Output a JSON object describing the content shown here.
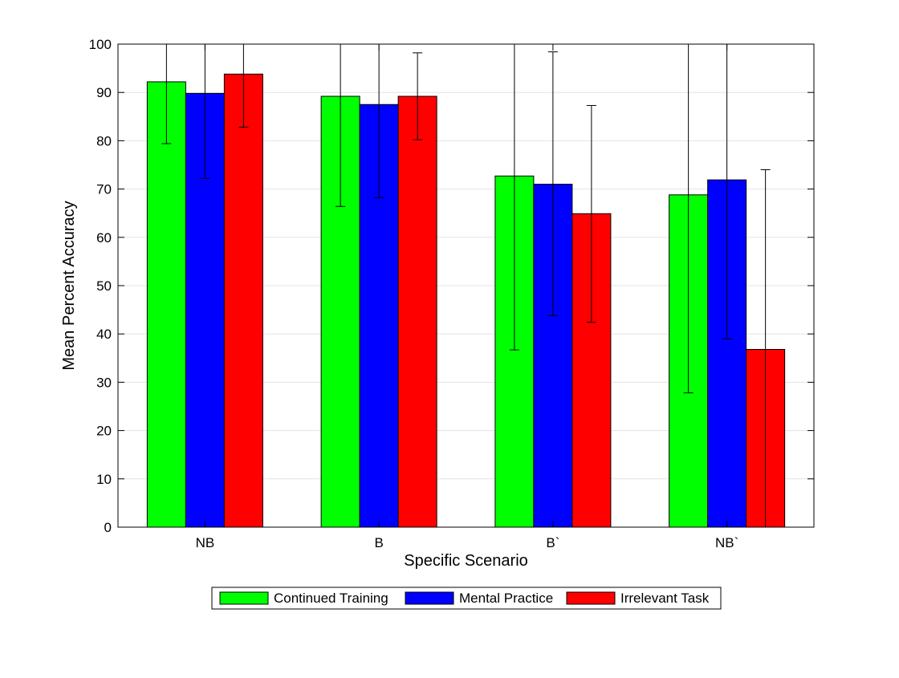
{
  "chart_data": {
    "type": "bar",
    "title": "",
    "xlabel": "Specific Scenario",
    "ylabel": "Mean Percent Accuracy",
    "categories": [
      "NB",
      "B",
      "B`",
      "NB`"
    ],
    "ylim": [
      0,
      100
    ],
    "yticks": [
      0,
      10,
      20,
      30,
      40,
      50,
      60,
      70,
      80,
      90,
      100
    ],
    "grid": true,
    "legend_position": "bottom-center",
    "series": [
      {
        "name": "Continued Training",
        "color": "#00ff00",
        "values": [
          92.2,
          89.2,
          72.7,
          68.8
        ],
        "error_low": [
          79.4,
          66.4,
          36.7,
          27.8
        ],
        "error_high": [
          100,
          100,
          100,
          100
        ]
      },
      {
        "name": "Mental Practice",
        "color": "#0000ff",
        "values": [
          89.8,
          87.5,
          71.0,
          71.9
        ],
        "error_low": [
          72.2,
          68.2,
          43.8,
          39.0
        ],
        "error_high": [
          100,
          100,
          98.4,
          100
        ]
      },
      {
        "name": "Irrelevant Task",
        "color": "#ff0000",
        "values": [
          93.8,
          89.2,
          64.9,
          36.8
        ],
        "error_low": [
          82.8,
          80.2,
          42.4,
          0
        ],
        "error_high": [
          100,
          98.2,
          87.3,
          74.0
        ]
      }
    ]
  }
}
